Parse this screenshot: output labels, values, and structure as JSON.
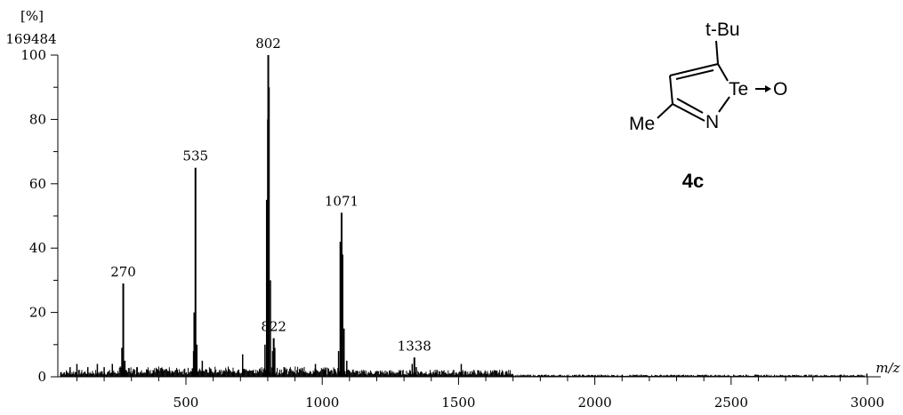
{
  "chart_data": {
    "type": "line",
    "subtype": "mass-spectrum",
    "y_unit": "[%]",
    "y_scale_max_count": "169484",
    "xlabel": "m/z",
    "ylim": [
      0,
      100
    ],
    "xlim": [
      30,
      3000
    ],
    "y_ticks": [
      "0",
      "20",
      "40",
      "60",
      "80",
      "100"
    ],
    "x_ticks": [
      "500",
      "1000",
      "1500",
      "2000",
      "2500",
      "3000"
    ],
    "peaks": [
      {
        "mz": 270,
        "intensity": 29,
        "label": "270"
      },
      {
        "mz": 535,
        "intensity": 65,
        "label": "535"
      },
      {
        "mz": 802,
        "intensity": 100,
        "label": "802"
      },
      {
        "mz": 822,
        "intensity": 12,
        "label": "822"
      },
      {
        "mz": 1071,
        "intensity": 51,
        "label": "1071"
      },
      {
        "mz": 1338,
        "intensity": 6,
        "label": "1338"
      }
    ],
    "minor_peaks": [
      {
        "mz": 75,
        "intensity": 3
      },
      {
        "mz": 100,
        "intensity": 4
      },
      {
        "mz": 140,
        "intensity": 3
      },
      {
        "mz": 175,
        "intensity": 4
      },
      {
        "mz": 200,
        "intensity": 3
      },
      {
        "mz": 230,
        "intensity": 4
      },
      {
        "mz": 265,
        "intensity": 9
      },
      {
        "mz": 276,
        "intensity": 5
      },
      {
        "mz": 320,
        "intensity": 3
      },
      {
        "mz": 380,
        "intensity": 2
      },
      {
        "mz": 440,
        "intensity": 2
      },
      {
        "mz": 528,
        "intensity": 8
      },
      {
        "mz": 530,
        "intensity": 20
      },
      {
        "mz": 540,
        "intensity": 10
      },
      {
        "mz": 560,
        "intensity": 5
      },
      {
        "mz": 590,
        "intensity": 2
      },
      {
        "mz": 640,
        "intensity": 2
      },
      {
        "mz": 708,
        "intensity": 7
      },
      {
        "mz": 790,
        "intensity": 10
      },
      {
        "mz": 796,
        "intensity": 55
      },
      {
        "mz": 800,
        "intensity": 80
      },
      {
        "mz": 805,
        "intensity": 90
      },
      {
        "mz": 810,
        "intensity": 30
      },
      {
        "mz": 818,
        "intensity": 8
      },
      {
        "mz": 826,
        "intensity": 9
      },
      {
        "mz": 860,
        "intensity": 3
      },
      {
        "mz": 975,
        "intensity": 4
      },
      {
        "mz": 1060,
        "intensity": 8
      },
      {
        "mz": 1066,
        "intensity": 42
      },
      {
        "mz": 1075,
        "intensity": 38
      },
      {
        "mz": 1080,
        "intensity": 15
      },
      {
        "mz": 1090,
        "intensity": 5
      },
      {
        "mz": 1330,
        "intensity": 4
      },
      {
        "mz": 1345,
        "intensity": 3
      },
      {
        "mz": 1510,
        "intensity": 4
      },
      {
        "mz": 1650,
        "intensity": 1
      },
      {
        "mz": 2998,
        "intensity": 1
      }
    ]
  },
  "structure": {
    "substituent_top": "t-Bu",
    "heteroatom": "Te",
    "oxygen": "O",
    "nitrogen": "N",
    "methyl": "Me",
    "compound_label": "4c"
  }
}
